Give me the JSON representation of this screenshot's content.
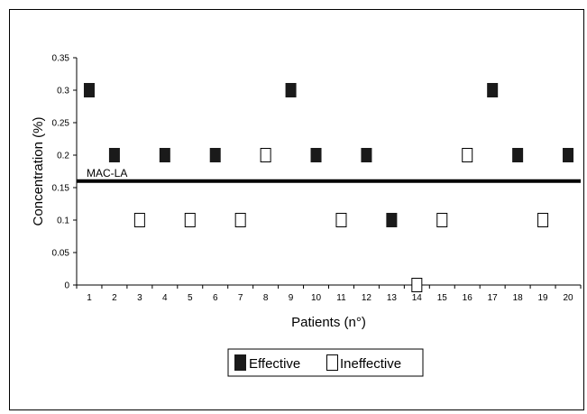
{
  "chart_data": {
    "type": "scatter",
    "title": "",
    "xlabel": "Patients (n°)",
    "ylabel": "Concentration (%)",
    "x": [
      1,
      2,
      3,
      4,
      5,
      6,
      7,
      8,
      9,
      10,
      11,
      12,
      13,
      14,
      15,
      16,
      17,
      18,
      19,
      20
    ],
    "x_tick_labels": [
      "1",
      "2",
      "3",
      "4",
      "5",
      "6",
      "7",
      "8",
      "9",
      "10",
      "11",
      "12",
      "13",
      "14",
      "15",
      "16",
      "17",
      "18",
      "19",
      "20"
    ],
    "ylim": [
      0,
      0.35
    ],
    "y_ticks": [
      0,
      0.05,
      0.1,
      0.15,
      0.2,
      0.25,
      0.3,
      0.35
    ],
    "y_tick_labels": [
      "0",
      "0.05",
      "0.1",
      "0.15",
      "0.2",
      "0.25",
      "0.3",
      "0.35"
    ],
    "series": [
      {
        "name": "Effective",
        "marker": "filled-square",
        "color": "#1a1a1a",
        "points": [
          [
            1,
            0.3
          ],
          [
            2,
            0.2
          ],
          [
            4,
            0.2
          ],
          [
            6,
            0.2
          ],
          [
            9,
            0.3
          ],
          [
            10,
            0.2
          ],
          [
            12,
            0.2
          ],
          [
            13,
            0.1
          ],
          [
            17,
            0.3
          ],
          [
            18,
            0.2
          ],
          [
            20,
            0.2
          ]
        ]
      },
      {
        "name": "Ineffective",
        "marker": "open-square",
        "color": "#000000",
        "points": [
          [
            3,
            0.1
          ],
          [
            5,
            0.1
          ],
          [
            7,
            0.1
          ],
          [
            8,
            0.2
          ],
          [
            11,
            0.1
          ],
          [
            14,
            0.0
          ],
          [
            15,
            0.1
          ],
          [
            16,
            0.2
          ],
          [
            19,
            0.1
          ]
        ]
      }
    ],
    "reference_line": {
      "label": "MAC-LA",
      "y": 0.16
    },
    "grid": false,
    "legend_position": "bottom-center"
  }
}
